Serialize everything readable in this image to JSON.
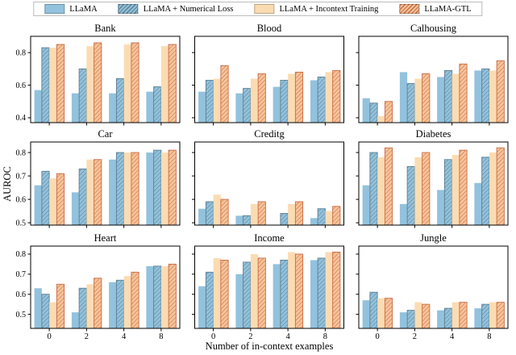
{
  "legend": {
    "items": [
      {
        "label": "LLaMA",
        "style": "solid-blue"
      },
      {
        "label": "LLaMA + Numerical Loss",
        "style": "hatch-blue"
      },
      {
        "label": "LLaMA + Incontext Training",
        "style": "solid-peach"
      },
      {
        "label": "LLaMA-GTL",
        "style": "hatch-orange"
      }
    ]
  },
  "axis": {
    "ylabel": "AUROC",
    "xlabel": "Number of in-context examples"
  },
  "colors": {
    "blue": "#92c2dd",
    "blue_hatch_line": "#5e7f91",
    "peach": "#fbdcb2",
    "orange": "#f7c498",
    "orange_hatch_line": "#c96b48",
    "axis_line": "#000000"
  },
  "chart_data": [
    {
      "type": "bar",
      "title": "Bank",
      "categories": [
        "0",
        "2",
        "4",
        "8"
      ],
      "ylim": [
        0.37,
        0.9
      ],
      "yticks": [
        0.4,
        0.6,
        0.8
      ],
      "show_ytick_labels": true,
      "show_xtick_labels": false,
      "series": [
        {
          "name": "LLaMA",
          "values": [
            0.57,
            0.55,
            0.55,
            0.56
          ]
        },
        {
          "name": "LLaMA + Numerical Loss",
          "values": [
            0.83,
            0.7,
            0.64,
            0.59
          ]
        },
        {
          "name": "LLaMA + Incontext Training",
          "values": [
            0.83,
            0.84,
            0.85,
            0.84
          ]
        },
        {
          "name": "LLaMA-GTL",
          "values": [
            0.85,
            0.86,
            0.86,
            0.85
          ]
        }
      ]
    },
    {
      "type": "bar",
      "title": "Blood",
      "categories": [
        "0",
        "2",
        "4",
        "8"
      ],
      "ylim": [
        0.37,
        0.9
      ],
      "yticks": [
        0.4,
        0.6,
        0.8
      ],
      "show_ytick_labels": false,
      "show_xtick_labels": false,
      "series": [
        {
          "name": "LLaMA",
          "values": [
            0.56,
            0.55,
            0.59,
            0.63
          ]
        },
        {
          "name": "LLaMA + Numerical Loss",
          "values": [
            0.63,
            0.58,
            0.63,
            0.65
          ]
        },
        {
          "name": "LLaMA + Incontext Training",
          "values": [
            0.64,
            0.64,
            0.67,
            0.68
          ]
        },
        {
          "name": "LLaMA-GTL",
          "values": [
            0.72,
            0.67,
            0.68,
            0.69
          ]
        }
      ]
    },
    {
      "type": "bar",
      "title": "Calhousing",
      "categories": [
        "0",
        "2",
        "4",
        "8"
      ],
      "ylim": [
        0.37,
        0.9
      ],
      "yticks": [
        0.4,
        0.6,
        0.8
      ],
      "show_ytick_labels": false,
      "show_xtick_labels": false,
      "series": [
        {
          "name": "LLaMA",
          "values": [
            0.52,
            0.68,
            0.65,
            0.69
          ]
        },
        {
          "name": "LLaMA + Numerical Loss",
          "values": [
            0.49,
            0.61,
            0.69,
            0.7
          ]
        },
        {
          "name": "LLaMA + Incontext Training",
          "values": [
            0.41,
            0.64,
            0.67,
            0.69
          ]
        },
        {
          "name": "LLaMA-GTL",
          "values": [
            0.5,
            0.67,
            0.73,
            0.75
          ]
        }
      ]
    },
    {
      "type": "bar",
      "title": "Car",
      "categories": [
        "0",
        "2",
        "4",
        "8"
      ],
      "ylim": [
        0.49,
        0.845
      ],
      "yticks": [
        0.5,
        0.6,
        0.7,
        0.8
      ],
      "show_ytick_labels": true,
      "show_xtick_labels": false,
      "series": [
        {
          "name": "LLaMA",
          "values": [
            0.66,
            0.63,
            0.77,
            0.8
          ]
        },
        {
          "name": "LLaMA + Numerical Loss",
          "values": [
            0.72,
            0.73,
            0.8,
            0.81
          ]
        },
        {
          "name": "LLaMA + Incontext Training",
          "values": [
            0.69,
            0.77,
            0.8,
            0.8
          ]
        },
        {
          "name": "LLaMA-GTL",
          "values": [
            0.71,
            0.77,
            0.8,
            0.81
          ]
        }
      ]
    },
    {
      "type": "bar",
      "title": "Creditg",
      "categories": [
        "0",
        "2",
        "4",
        "8"
      ],
      "ylim": [
        0.49,
        0.845
      ],
      "yticks": [
        0.5,
        0.6,
        0.7,
        0.8
      ],
      "show_ytick_labels": false,
      "show_xtick_labels": false,
      "series": [
        {
          "name": "LLaMA",
          "values": [
            0.56,
            0.53,
            0.49,
            0.52
          ]
        },
        {
          "name": "LLaMA + Numerical Loss",
          "values": [
            0.59,
            0.53,
            0.54,
            0.56
          ]
        },
        {
          "name": "LLaMA + Incontext Training",
          "values": [
            0.62,
            0.58,
            0.58,
            0.55
          ]
        },
        {
          "name": "LLaMA-GTL",
          "values": [
            0.6,
            0.59,
            0.59,
            0.57
          ]
        }
      ]
    },
    {
      "type": "bar",
      "title": "Diabetes",
      "categories": [
        "0",
        "2",
        "4",
        "8"
      ],
      "ylim": [
        0.49,
        0.845
      ],
      "yticks": [
        0.5,
        0.6,
        0.7,
        0.8
      ],
      "show_ytick_labels": false,
      "show_xtick_labels": false,
      "series": [
        {
          "name": "LLaMA",
          "values": [
            0.66,
            0.58,
            0.64,
            0.67
          ]
        },
        {
          "name": "LLaMA + Numerical Loss",
          "values": [
            0.8,
            0.74,
            0.77,
            0.78
          ]
        },
        {
          "name": "LLaMA + Incontext Training",
          "values": [
            0.78,
            0.78,
            0.79,
            0.8
          ]
        },
        {
          "name": "LLaMA-GTL",
          "values": [
            0.82,
            0.8,
            0.81,
            0.82
          ]
        }
      ]
    },
    {
      "type": "bar",
      "title": "Heart",
      "categories": [
        "0",
        "2",
        "4",
        "8"
      ],
      "ylim": [
        0.43,
        0.84
      ],
      "yticks": [
        0.5,
        0.6,
        0.7,
        0.8
      ],
      "show_ytick_labels": true,
      "show_xtick_labels": true,
      "series": [
        {
          "name": "LLaMA",
          "values": [
            0.63,
            0.51,
            0.66,
            0.74
          ]
        },
        {
          "name": "LLaMA + Numerical Loss",
          "values": [
            0.6,
            0.63,
            0.67,
            0.74
          ]
        },
        {
          "name": "LLaMA + Incontext Training",
          "values": [
            0.56,
            0.65,
            0.69,
            0.74
          ]
        },
        {
          "name": "LLaMA-GTL",
          "values": [
            0.65,
            0.68,
            0.71,
            0.75
          ]
        }
      ]
    },
    {
      "type": "bar",
      "title": "Income",
      "categories": [
        "0",
        "2",
        "4",
        "8"
      ],
      "ylim": [
        0.43,
        0.84
      ],
      "yticks": [
        0.5,
        0.6,
        0.7,
        0.8
      ],
      "show_ytick_labels": false,
      "show_xtick_labels": true,
      "series": [
        {
          "name": "LLaMA",
          "values": [
            0.64,
            0.7,
            0.75,
            0.77
          ]
        },
        {
          "name": "LLaMA + Numerical Loss",
          "values": [
            0.71,
            0.76,
            0.77,
            0.78
          ]
        },
        {
          "name": "LLaMA + Incontext Training",
          "values": [
            0.78,
            0.8,
            0.81,
            0.81
          ]
        },
        {
          "name": "LLaMA-GTL",
          "values": [
            0.77,
            0.78,
            0.8,
            0.81
          ]
        }
      ]
    },
    {
      "type": "bar",
      "title": "Jungle",
      "categories": [
        "0",
        "2",
        "4",
        "8"
      ],
      "ylim": [
        0.43,
        0.84
      ],
      "yticks": [
        0.5,
        0.6,
        0.7,
        0.8
      ],
      "show_ytick_labels": false,
      "show_xtick_labels": true,
      "series": [
        {
          "name": "LLaMA",
          "values": [
            0.57,
            0.51,
            0.52,
            0.53
          ]
        },
        {
          "name": "LLaMA + Numerical Loss",
          "values": [
            0.61,
            0.52,
            0.53,
            0.55
          ]
        },
        {
          "name": "LLaMA + Incontext Training",
          "values": [
            0.58,
            0.56,
            0.56,
            0.56
          ]
        },
        {
          "name": "LLaMA-GTL",
          "values": [
            0.58,
            0.55,
            0.56,
            0.56
          ]
        }
      ]
    }
  ]
}
